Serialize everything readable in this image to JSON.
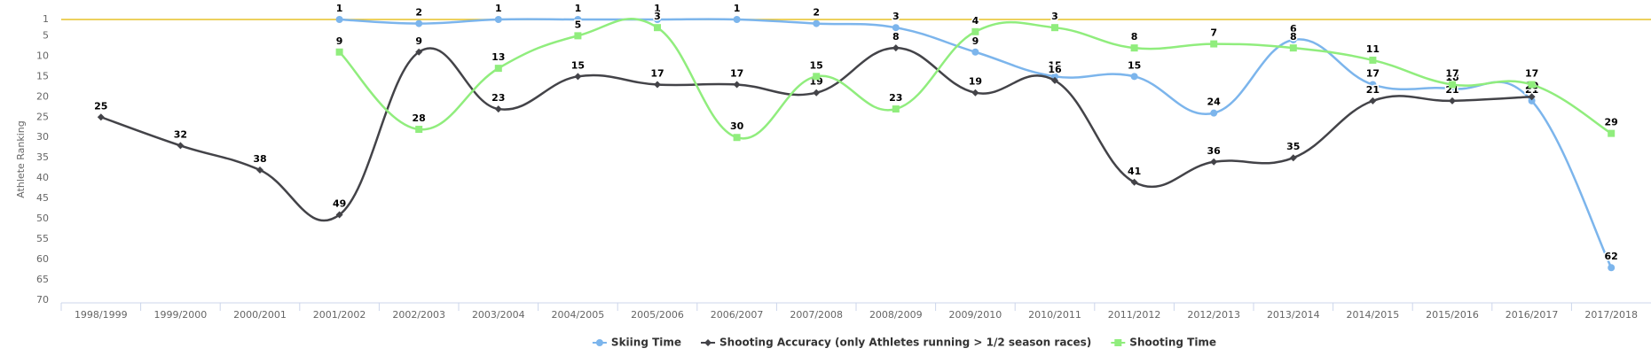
{
  "chart_data": {
    "type": "line",
    "y_label": "Athlete Ranking",
    "categories": [
      "1998/1999",
      "1999/2000",
      "2000/2001",
      "2001/2002",
      "2002/2003",
      "2003/2004",
      "2004/2005",
      "2005/2006",
      "2006/2007",
      "2007/2008",
      "2008/2009",
      "2009/2010",
      "2010/2011",
      "2011/2012",
      "2012/2013",
      "2013/2014",
      "2014/2015",
      "2015/2016",
      "2016/2017",
      "2017/2018"
    ],
    "series": [
      {
        "name": "Skiing Time",
        "color": "#7cb5ec",
        "marker": "circle",
        "values": [
          null,
          null,
          null,
          1,
          2,
          1,
          1,
          1,
          1,
          2,
          3,
          9,
          15,
          15,
          24,
          6,
          17,
          18,
          21,
          62
        ]
      },
      {
        "name": "Shooting Accuracy (only Athletes running > 1/2 season races)",
        "color": "#434348",
        "marker": "diamond",
        "values": [
          25,
          32,
          38,
          49,
          9,
          23,
          15,
          17,
          17,
          19,
          8,
          19,
          16,
          41,
          36,
          35,
          21,
          21,
          20,
          null
        ]
      },
      {
        "name": "Shooting Time",
        "color": "#90ed7d",
        "marker": "square",
        "values": [
          null,
          null,
          null,
          9,
          28,
          13,
          5,
          3,
          30,
          15,
          23,
          4,
          3,
          8,
          7,
          8,
          11,
          17,
          17,
          29
        ]
      }
    ],
    "ylim": [
      1,
      70
    ],
    "reversed": true,
    "yticks": [
      1,
      5,
      10,
      15,
      20,
      25,
      30,
      35,
      40,
      45,
      50,
      55,
      60,
      65,
      70
    ],
    "plot_line": {
      "value": 1,
      "color": "#e6c229"
    },
    "grid": false
  }
}
